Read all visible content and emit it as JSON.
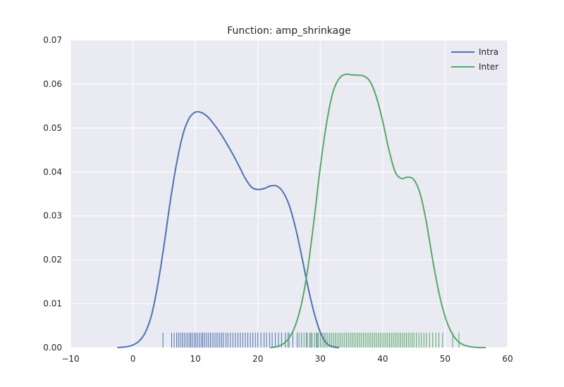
{
  "chart_data": {
    "type": "line",
    "title": "Function: amp_shrinkage",
    "xlabel": "",
    "ylabel": "",
    "xlim": [
      -10,
      60
    ],
    "ylim": [
      0,
      0.07
    ],
    "x_ticks": [
      -10,
      0,
      10,
      20,
      30,
      40,
      50,
      60
    ],
    "x_tick_labels": [
      "−10",
      "0",
      "10",
      "20",
      "30",
      "40",
      "50",
      "60"
    ],
    "y_ticks": [
      0,
      0.01,
      0.02,
      0.03,
      0.04,
      0.05,
      0.06,
      0.07
    ],
    "y_tick_labels": [
      "0.00",
      "0.01",
      "0.02",
      "0.03",
      "0.04",
      "0.05",
      "0.06",
      "0.07"
    ],
    "grid": true,
    "legend_position": "top-right",
    "series": [
      {
        "name": "Intra",
        "color": "#4c72b0",
        "x": [
          -2.5,
          -1,
          0,
          1,
          2,
          3,
          4,
          5,
          6,
          7,
          8,
          9,
          10,
          11,
          12,
          13,
          14,
          15,
          16,
          17,
          18,
          19,
          20,
          21,
          22,
          23,
          24,
          25,
          26,
          27,
          28,
          29,
          30,
          31,
          32,
          33
        ],
        "y": [
          0.0,
          0.0002,
          0.0006,
          0.0015,
          0.0035,
          0.0075,
          0.0145,
          0.0235,
          0.0335,
          0.042,
          0.0485,
          0.0522,
          0.0536,
          0.0535,
          0.0525,
          0.0508,
          0.0488,
          0.0465,
          0.044,
          0.0413,
          0.0385,
          0.0365,
          0.036,
          0.0362,
          0.0368,
          0.0368,
          0.0355,
          0.0325,
          0.0275,
          0.021,
          0.014,
          0.008,
          0.0035,
          0.001,
          0.0002,
          0.0
        ]
      },
      {
        "name": "Inter",
        "color": "#55a868",
        "x": [
          22,
          23,
          24,
          25,
          26,
          27,
          28,
          29,
          30,
          31,
          32,
          33,
          34,
          35,
          36,
          37,
          38,
          39,
          40,
          41,
          42,
          43,
          44,
          45,
          46,
          47,
          48,
          49,
          50,
          51,
          52,
          53,
          54,
          55,
          56.5
        ],
        "y": [
          0.0,
          0.0002,
          0.0008,
          0.0022,
          0.005,
          0.01,
          0.018,
          0.029,
          0.041,
          0.051,
          0.058,
          0.0612,
          0.0622,
          0.0621,
          0.062,
          0.0618,
          0.0605,
          0.057,
          0.0515,
          0.045,
          0.04,
          0.0385,
          0.0388,
          0.0382,
          0.035,
          0.0285,
          0.02,
          0.0125,
          0.007,
          0.0035,
          0.0015,
          0.0006,
          0.0002,
          5e-05,
          0.0
        ]
      }
    ],
    "rugs": [
      {
        "series": "Intra",
        "color": "#4c72b0",
        "values": [
          4.8,
          6.2,
          6.6,
          7.0,
          7.3,
          7.6,
          7.9,
          8.2,
          8.5,
          8.8,
          9.1,
          9.3,
          9.6,
          9.9,
          10.1,
          10.4,
          10.7,
          11.0,
          11.2,
          11.5,
          11.8,
          12.1,
          12.4,
          12.7,
          13.0,
          13.3,
          13.6,
          13.9,
          14.2,
          14.5,
          14.9,
          15.2,
          15.6,
          16.0,
          16.4,
          16.8,
          17.2,
          17.6,
          18.0,
          18.4,
          18.8,
          19.2,
          19.6,
          20.0,
          20.5,
          21.0,
          21.4,
          21.9,
          22.3,
          22.8,
          23.3,
          23.8,
          24.4,
          25.0,
          25.6,
          26.3,
          27.0,
          27.8,
          28.5,
          29.5,
          30.6
        ]
      },
      {
        "series": "Inter",
        "color": "#55a868",
        "values": [
          24.8,
          26.6,
          27.4,
          27.9,
          28.3,
          28.7,
          29.1,
          29.4,
          29.7,
          30.0,
          30.3,
          30.6,
          30.9,
          31.2,
          31.5,
          31.8,
          32.1,
          32.4,
          32.7,
          33.0,
          33.3,
          33.6,
          33.9,
          34.2,
          34.5,
          34.8,
          35.1,
          35.4,
          35.7,
          36.0,
          36.3,
          36.6,
          36.9,
          37.2,
          37.5,
          37.8,
          38.1,
          38.4,
          38.7,
          39.0,
          39.3,
          39.6,
          39.9,
          40.2,
          40.5,
          40.8,
          41.1,
          41.4,
          41.7,
          42.0,
          42.3,
          42.6,
          42.9,
          43.2,
          43.5,
          43.8,
          44.1,
          44.4,
          44.7,
          45.0,
          45.4,
          45.8,
          46.2,
          46.6,
          47.0,
          47.5,
          48.0,
          48.5,
          49.0,
          49.6,
          51.2,
          52.2
        ]
      }
    ]
  }
}
